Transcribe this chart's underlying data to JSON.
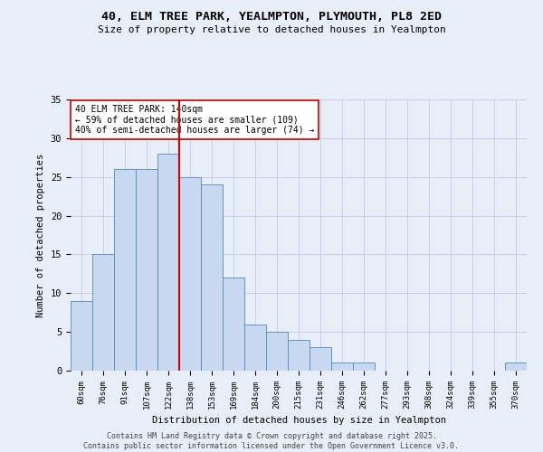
{
  "title_line1": "40, ELM TREE PARK, YEALMPTON, PLYMOUTH, PL8 2ED",
  "title_line2": "Size of property relative to detached houses in Yealmpton",
  "xlabel": "Distribution of detached houses by size in Yealmpton",
  "ylabel": "Number of detached properties",
  "categories": [
    "60sqm",
    "76sqm",
    "91sqm",
    "107sqm",
    "122sqm",
    "138sqm",
    "153sqm",
    "169sqm",
    "184sqm",
    "200sqm",
    "215sqm",
    "231sqm",
    "246sqm",
    "262sqm",
    "277sqm",
    "293sqm",
    "308sqm",
    "324sqm",
    "339sqm",
    "355sqm",
    "370sqm"
  ],
  "values": [
    9,
    15,
    26,
    26,
    28,
    25,
    24,
    12,
    6,
    5,
    4,
    3,
    1,
    1,
    0,
    0,
    0,
    0,
    0,
    0,
    1
  ],
  "bar_color": "#c8d8f0",
  "bar_edge_color": "#5588bb",
  "vline_index": 5,
  "vline_color": "#cc0000",
  "annotation_text": "40 ELM TREE PARK: 140sqm\n← 59% of detached houses are smaller (109)\n40% of semi-detached houses are larger (74) →",
  "annotation_box_color": "#ffffff",
  "annotation_box_edge": "#cc0000",
  "ylim": [
    0,
    35
  ],
  "yticks": [
    0,
    5,
    10,
    15,
    20,
    25,
    30,
    35
  ],
  "background_color": "#e8eef8",
  "footer_line1": "Contains HM Land Registry data © Crown copyright and database right 2025.",
  "footer_line2": "Contains public sector information licensed under the Open Government Licence v3.0."
}
